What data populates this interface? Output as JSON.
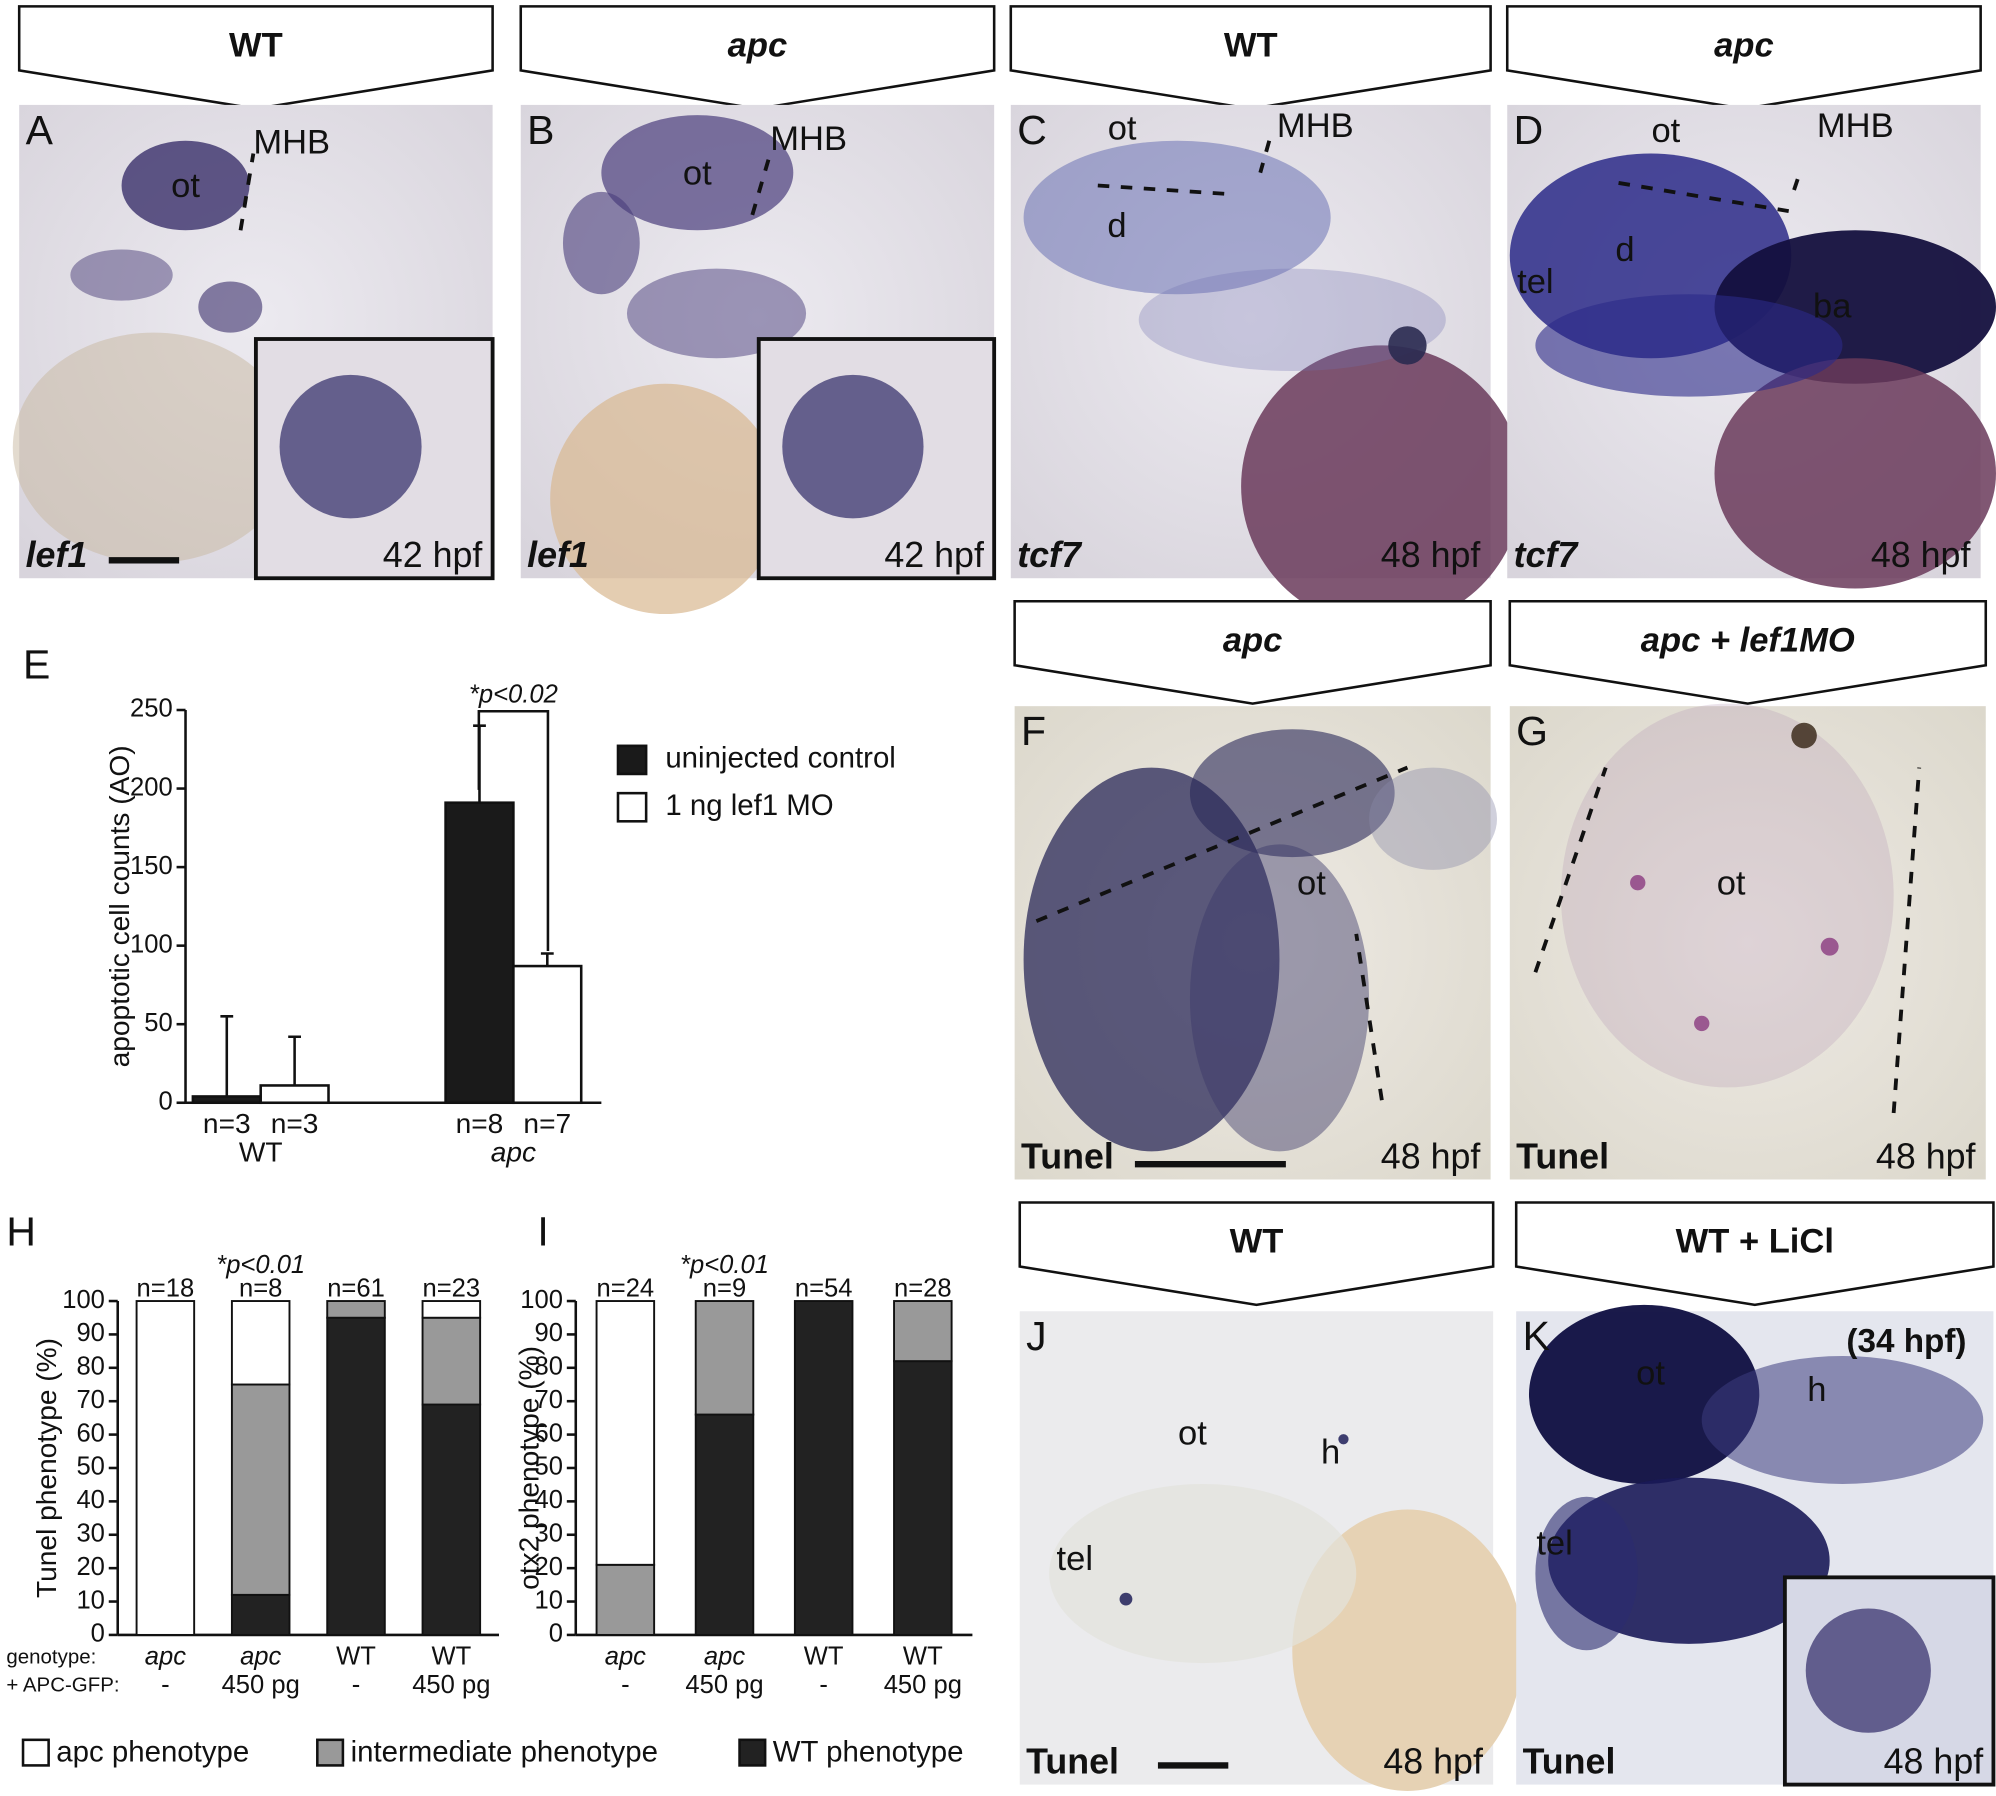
{
  "panels": [
    {
      "letter": "A",
      "header": "WT",
      "gene": "lef1",
      "stage": "42 hpf",
      "labels": [
        "ot",
        "MHB"
      ]
    },
    {
      "letter": "B",
      "header": "apc",
      "gene": "lef1",
      "stage": "42 hpf",
      "labels": [
        "ot",
        "MHB"
      ]
    },
    {
      "letter": "C",
      "header": "WT",
      "gene": "tcf7",
      "stage": "48 hpf",
      "labels": [
        "ot",
        "MHB",
        "d"
      ]
    },
    {
      "letter": "D",
      "header": "apc",
      "gene": "tcf7",
      "stage": "48 hpf",
      "labels": [
        "ot",
        "MHB",
        "d",
        "tel",
        "ba"
      ]
    },
    {
      "letter": "F",
      "header": "apc",
      "gene": "Tunel",
      "stage": "48 hpf",
      "labels": [
        "ot"
      ]
    },
    {
      "letter": "G",
      "header": "apc + lef1MO",
      "gene": "Tunel",
      "stage": "48 hpf",
      "labels": [
        "ot"
      ]
    },
    {
      "letter": "J",
      "header": "WT",
      "gene": "Tunel",
      "stage": "48 hpf",
      "labels": [
        "ot",
        "h",
        "tel"
      ]
    },
    {
      "letter": "K",
      "header": "WT + LiCl",
      "gene": "Tunel",
      "stage": "48 hpf",
      "labels": [
        "ot",
        "h",
        "tel",
        "(34 hpf)"
      ]
    }
  ],
  "chart_data": [
    {
      "type": "grouped-bar",
      "letter": "E",
      "y_label": "apoptotic cell counts (AO)",
      "annotation": "*p<0.02",
      "categories": [
        "WT",
        "apc"
      ],
      "ylim": [
        0,
        250
      ],
      "yticks": [
        0,
        50,
        100,
        150,
        200,
        250
      ],
      "series": [
        {
          "name": "uninjected control",
          "color": "#1a1a1a",
          "values": [
            4,
            191
          ],
          "errors": [
            51,
            49
          ],
          "n_labels": [
            "n=3",
            "n=8"
          ]
        },
        {
          "name": "1 ng lef1 MO",
          "color": "#ffffff",
          "values": [
            11,
            87
          ],
          "errors": [
            31,
            8
          ],
          "n_labels": [
            "n=3",
            "n=7"
          ]
        }
      ]
    },
    {
      "type": "stacked-bar",
      "letter": "H",
      "y_label": "Tunel phenotype (%)",
      "annotation": "*p<0.01",
      "row_labels": [
        "genotype:",
        "+ APC-GFP:"
      ],
      "categories": [
        "apc",
        "apc",
        "WT",
        "WT"
      ],
      "treatments": [
        "-",
        "450 pg",
        "-",
        "450 pg"
      ],
      "n_labels": [
        "n=18",
        "n=8",
        "n=61",
        "n=23"
      ],
      "ylim": [
        0,
        100
      ],
      "yticks": [
        0,
        10,
        20,
        30,
        40,
        50,
        60,
        70,
        80,
        90,
        100
      ],
      "series": [
        {
          "name": "WT phenotype",
          "color": "#222222",
          "values": [
            0,
            12,
            95,
            69
          ]
        },
        {
          "name": "intermediate phenotype",
          "color": "#999999",
          "values": [
            0,
            63,
            5,
            26
          ]
        },
        {
          "name": "apc phenotype",
          "color": "#ffffff",
          "values": [
            100,
            25,
            0,
            5
          ]
        }
      ]
    },
    {
      "type": "stacked-bar",
      "letter": "I",
      "y_label": "otx2 phenotype (%)",
      "annotation": "*p<0.01",
      "categories": [
        "apc",
        "apc",
        "WT",
        "WT"
      ],
      "treatments": [
        "-",
        "450 pg",
        "-",
        "450 pg"
      ],
      "n_labels": [
        "n=24",
        "n=9",
        "n=54",
        "n=28"
      ],
      "ylim": [
        0,
        100
      ],
      "yticks": [
        0,
        10,
        20,
        30,
        40,
        50,
        60,
        70,
        80,
        90,
        100
      ],
      "series": [
        {
          "name": "WT phenotype",
          "color": "#222222",
          "values": [
            0,
            66,
            100,
            82
          ]
        },
        {
          "name": "intermediate phenotype",
          "color": "#999999",
          "values": [
            21,
            34,
            0,
            18
          ]
        },
        {
          "name": "apc phenotype",
          "color": "#ffffff",
          "values": [
            79,
            0,
            0,
            0
          ]
        }
      ]
    }
  ]
}
